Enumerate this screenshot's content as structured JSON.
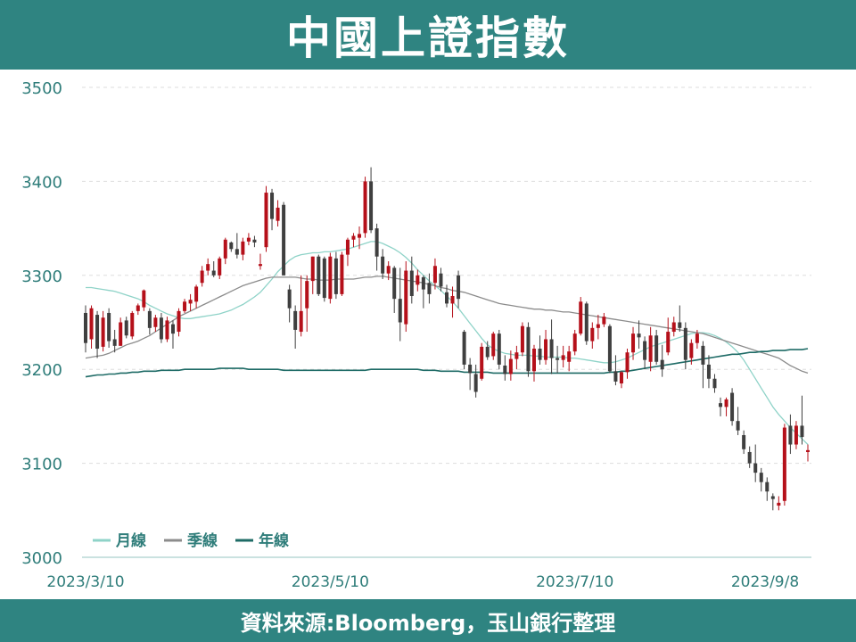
{
  "header": {
    "title": "中國上證指數"
  },
  "footer": {
    "source": "資料來源:Bloomberg，玉山銀行整理"
  },
  "colors": {
    "header_bg": "#2f8481",
    "up": "#b5101a",
    "down": "#3f3f3f",
    "monthly_ma": "#8fd3c8",
    "quarterly_ma": "#8c8c8c",
    "yearly_ma": "#1e6b66",
    "axis_text": "#2f7d7a",
    "grid": "#dddddd"
  },
  "chart_data": {
    "type": "candlestick",
    "title": "中國上證指數",
    "ylim": [
      3000,
      3500
    ],
    "yticks": [
      3000,
      3100,
      3200,
      3300,
      3400,
      3500
    ],
    "xtick_labels": [
      "2023/3/10",
      "2023/5/10",
      "2023/7/10",
      "2023/9/8"
    ],
    "legend": {
      "position": "lower-left",
      "items": [
        "月線",
        "季線",
        "年線"
      ]
    },
    "grid": true,
    "dates": [
      "2023-03-10",
      "2023-03-13",
      "2023-03-14",
      "2023-03-15",
      "2023-03-16",
      "2023-03-17",
      "2023-03-20",
      "2023-03-21",
      "2023-03-22",
      "2023-03-23",
      "2023-03-24",
      "2023-03-27",
      "2023-03-28",
      "2023-03-29",
      "2023-03-30",
      "2023-03-31",
      "2023-04-03",
      "2023-04-04",
      "2023-04-06",
      "2023-04-07",
      "2023-04-10",
      "2023-04-11",
      "2023-04-12",
      "2023-04-13",
      "2023-04-14",
      "2023-04-17",
      "2023-04-18",
      "2023-04-19",
      "2023-04-20",
      "2023-04-21",
      "2023-04-24",
      "2023-04-25",
      "2023-04-26",
      "2023-04-27",
      "2023-04-28",
      "2023-05-04",
      "2023-05-05",
      "2023-05-08",
      "2023-05-09",
      "2023-05-10",
      "2023-05-11",
      "2023-05-12",
      "2023-05-15",
      "2023-05-16",
      "2023-05-17",
      "2023-05-18",
      "2023-05-19",
      "2023-05-22",
      "2023-05-23",
      "2023-05-24",
      "2023-05-25",
      "2023-05-26",
      "2023-05-29",
      "2023-05-30",
      "2023-05-31",
      "2023-06-01",
      "2023-06-02",
      "2023-06-05",
      "2023-06-06",
      "2023-06-07",
      "2023-06-08",
      "2023-06-09",
      "2023-06-12",
      "2023-06-13",
      "2023-06-14",
      "2023-06-15",
      "2023-06-16",
      "2023-06-19",
      "2023-06-20",
      "2023-06-21",
      "2023-06-26",
      "2023-06-27",
      "2023-06-28",
      "2023-06-29",
      "2023-06-30",
      "2023-07-03",
      "2023-07-04",
      "2023-07-05",
      "2023-07-06",
      "2023-07-07",
      "2023-07-10",
      "2023-07-11",
      "2023-07-12",
      "2023-07-13",
      "2023-07-14",
      "2023-07-17",
      "2023-07-18",
      "2023-07-19",
      "2023-07-20",
      "2023-07-21",
      "2023-07-24",
      "2023-07-25",
      "2023-07-26",
      "2023-07-27",
      "2023-07-28",
      "2023-07-31",
      "2023-08-01",
      "2023-08-02",
      "2023-08-03",
      "2023-08-04",
      "2023-08-07",
      "2023-08-08",
      "2023-08-09",
      "2023-08-10",
      "2023-08-11",
      "2023-08-14",
      "2023-08-15",
      "2023-08-16",
      "2023-08-17",
      "2023-08-18",
      "2023-08-21",
      "2023-08-22",
      "2023-08-23",
      "2023-08-24",
      "2023-08-25",
      "2023-08-28",
      "2023-08-29",
      "2023-08-30",
      "2023-08-31",
      "2023-09-01",
      "2023-09-04",
      "2023-09-05",
      "2023-09-06",
      "2023-09-07",
      "2023-09-08"
    ],
    "ohlc": [
      [
        3260,
        3268,
        3218,
        3228
      ],
      [
        3232,
        3268,
        3222,
        3265
      ],
      [
        3258,
        3262,
        3212,
        3222
      ],
      [
        3224,
        3262,
        3219,
        3255
      ],
      [
        3260,
        3265,
        3223,
        3230
      ],
      [
        3232,
        3242,
        3218,
        3225
      ],
      [
        3225,
        3255,
        3225,
        3250
      ],
      [
        3252,
        3256,
        3233,
        3236
      ],
      [
        3235,
        3262,
        3232,
        3260
      ],
      [
        3262,
        3270,
        3258,
        3268
      ],
      [
        3266,
        3285,
        3262,
        3284
      ],
      [
        3262,
        3265,
        3237,
        3244
      ],
      [
        3245,
        3258,
        3240,
        3255
      ],
      [
        3255,
        3260,
        3228,
        3232
      ],
      [
        3232,
        3256,
        3229,
        3252
      ],
      [
        3248,
        3252,
        3222,
        3238
      ],
      [
        3240,
        3265,
        3235,
        3262
      ],
      [
        3262,
        3275,
        3260,
        3272
      ],
      [
        3270,
        3280,
        3262,
        3274
      ],
      [
        3272,
        3290,
        3265,
        3288
      ],
      [
        3292,
        3310,
        3288,
        3305
      ],
      [
        3305,
        3318,
        3300,
        3312
      ],
      [
        3305,
        3315,
        3298,
        3300
      ],
      [
        3300,
        3320,
        3296,
        3318
      ],
      [
        3318,
        3340,
        3312,
        3338
      ],
      [
        3335,
        3336,
        3325,
        3328
      ],
      [
        3328,
        3345,
        3318,
        3322
      ],
      [
        3322,
        3340,
        3316,
        3336
      ],
      [
        3336,
        3345,
        3332,
        3340
      ],
      [
        3338,
        3342,
        3330,
        3335
      ],
      [
        3310,
        3323,
        3306,
        3312
      ],
      [
        3330,
        3395,
        3325,
        3388
      ],
      [
        3388,
        3392,
        3348,
        3360
      ],
      [
        3358,
        3380,
        3352,
        3372
      ],
      [
        3375,
        3378,
        3300,
        3300
      ],
      [
        3285,
        3290,
        3250,
        3265
      ],
      [
        3262,
        3268,
        3222,
        3242
      ],
      [
        3240,
        3300,
        3235,
        3262
      ],
      [
        3265,
        3300,
        3240,
        3294
      ],
      [
        3294,
        3320,
        3280,
        3320
      ],
      [
        3320,
        3322,
        3278,
        3280
      ],
      [
        3318,
        3320,
        3272,
        3276
      ],
      [
        3275,
        3324,
        3270,
        3320
      ],
      [
        3318,
        3325,
        3275,
        3280
      ],
      [
        3280,
        3325,
        3278,
        3322
      ],
      [
        3322,
        3340,
        3310,
        3338
      ],
      [
        3338,
        3345,
        3330,
        3342
      ],
      [
        3340,
        3352,
        3328,
        3344
      ],
      [
        3345,
        3405,
        3340,
        3400
      ],
      [
        3400,
        3415,
        3345,
        3348
      ],
      [
        3350,
        3355,
        3305,
        3320
      ],
      [
        3320,
        3328,
        3296,
        3302
      ],
      [
        3302,
        3315,
        3295,
        3310
      ],
      [
        3308,
        3310,
        3260,
        3275
      ],
      [
        3275,
        3308,
        3230,
        3250
      ],
      [
        3248,
        3315,
        3240,
        3305
      ],
      [
        3305,
        3320,
        3270,
        3278
      ],
      [
        3290,
        3306,
        3283,
        3300
      ],
      [
        3298,
        3300,
        3265,
        3285
      ],
      [
        3292,
        3302,
        3270,
        3280
      ],
      [
        3292,
        3318,
        3285,
        3310
      ],
      [
        3302,
        3308,
        3283,
        3288
      ],
      [
        3282,
        3290,
        3266,
        3270
      ],
      [
        3270,
        3288,
        3255,
        3278
      ],
      [
        3300,
        3305,
        3265,
        3275
      ],
      [
        3240,
        3242,
        3200,
        3205
      ],
      [
        3205,
        3212,
        3178,
        3196
      ],
      [
        3195,
        3205,
        3170,
        3176
      ],
      [
        3190,
        3228,
        3188,
        3224
      ],
      [
        3224,
        3230,
        3210,
        3213
      ],
      [
        3214,
        3240,
        3210,
        3238
      ],
      [
        3238,
        3242,
        3200,
        3205
      ],
      [
        3204,
        3215,
        3188,
        3195
      ],
      [
        3195,
        3220,
        3188,
        3211
      ],
      [
        3211,
        3225,
        3200,
        3218
      ],
      [
        3218,
        3250,
        3214,
        3246
      ],
      [
        3245,
        3250,
        3192,
        3198
      ],
      [
        3198,
        3226,
        3187,
        3222
      ],
      [
        3222,
        3236,
        3205,
        3210
      ],
      [
        3210,
        3242,
        3205,
        3232
      ],
      [
        3232,
        3253,
        3195,
        3212
      ],
      [
        3212,
        3225,
        3196,
        3210
      ],
      [
        3210,
        3225,
        3202,
        3215
      ],
      [
        3208,
        3225,
        3198,
        3219
      ],
      [
        3219,
        3242,
        3215,
        3238
      ],
      [
        3238,
        3277,
        3236,
        3272
      ],
      [
        3270,
        3272,
        3226,
        3230
      ],
      [
        3230,
        3250,
        3222,
        3244
      ],
      [
        3244,
        3258,
        3232,
        3248
      ],
      [
        3248,
        3260,
        3245,
        3256
      ],
      [
        3246,
        3248,
        3196,
        3198
      ],
      [
        3198,
        3215,
        3183,
        3187
      ],
      [
        3185,
        3198,
        3180,
        3197
      ],
      [
        3197,
        3222,
        3190,
        3218
      ],
      [
        3218,
        3245,
        3210,
        3238
      ],
      [
        3238,
        3252,
        3222,
        3234
      ],
      [
        3230,
        3235,
        3200,
        3210
      ],
      [
        3208,
        3245,
        3198,
        3236
      ],
      [
        3236,
        3242,
        3205,
        3208
      ],
      [
        3210,
        3226,
        3192,
        3200
      ],
      [
        3218,
        3255,
        3215,
        3240
      ],
      [
        3240,
        3256,
        3235,
        3250
      ],
      [
        3250,
        3268,
        3240,
        3244
      ],
      [
        3244,
        3250,
        3200,
        3210
      ],
      [
        3212,
        3232,
        3205,
        3228
      ],
      [
        3228,
        3242,
        3222,
        3238
      ],
      [
        3225,
        3230,
        3180,
        3205
      ],
      [
        3205,
        3215,
        3180,
        3190
      ],
      [
        3190,
        3195,
        3175,
        3180
      ],
      [
        3164,
        3170,
        3150,
        3160
      ],
      [
        3160,
        3170,
        3150,
        3168
      ],
      [
        3175,
        3180,
        3140,
        3145
      ],
      [
        3145,
        3160,
        3130,
        3135
      ],
      [
        3130,
        3135,
        3110,
        3115
      ],
      [
        3112,
        3118,
        3095,
        3100
      ],
      [
        3100,
        3120,
        3080,
        3090
      ],
      [
        3090,
        3095,
        3070,
        3080
      ],
      [
        3080,
        3085,
        3060,
        3070
      ],
      [
        3065,
        3068,
        3050,
        3062
      ],
      [
        3055,
        3065,
        3050,
        3058
      ],
      [
        3060,
        3142,
        3055,
        3138
      ],
      [
        3140,
        3152,
        3110,
        3120
      ],
      [
        3120,
        3145,
        3115,
        3140
      ],
      [
        3140,
        3172,
        3120,
        3128
      ],
      [
        3112,
        3120,
        3102,
        3114
      ]
    ],
    "series": [
      {
        "name": "月線",
        "values": [
          3287,
          3287,
          3286,
          3285,
          3284,
          3283,
          3281,
          3279,
          3277,
          3275,
          3272,
          3268,
          3265,
          3262,
          3259,
          3257,
          3255,
          3254,
          3254,
          3255,
          3256,
          3257,
          3258,
          3259,
          3261,
          3263,
          3266,
          3269,
          3273,
          3277,
          3282,
          3289,
          3296,
          3304,
          3310,
          3316,
          3320,
          3322,
          3323,
          3324,
          3324,
          3325,
          3325,
          3326,
          3327,
          3328,
          3330,
          3332,
          3334,
          3336,
          3336,
          3334,
          3331,
          3328,
          3324,
          3319,
          3313,
          3306,
          3300,
          3294,
          3289,
          3284,
          3278,
          3272,
          3265,
          3257,
          3249,
          3241,
          3233,
          3226,
          3222,
          3219,
          3217,
          3216,
          3215,
          3215,
          3215,
          3214,
          3214,
          3213,
          3213,
          3213,
          3213,
          3212,
          3212,
          3211,
          3210,
          3209,
          3208,
          3207,
          3207,
          3208,
          3210,
          3212,
          3215,
          3218,
          3221,
          3224,
          3226,
          3228,
          3230,
          3232,
          3234,
          3236,
          3238,
          3239,
          3239,
          3238,
          3236,
          3233,
          3229,
          3224,
          3218,
          3210,
          3200,
          3190,
          3180,
          3170,
          3160,
          3152,
          3145,
          3138,
          3132,
          3126,
          3120
        ]
      },
      {
        "name": "季線",
        "values": [
          3212,
          3213,
          3214,
          3215,
          3217,
          3220,
          3223,
          3226,
          3228,
          3230,
          3233,
          3236,
          3240,
          3244,
          3248,
          3252,
          3256,
          3259,
          3262,
          3265,
          3268,
          3271,
          3274,
          3277,
          3280,
          3283,
          3286,
          3289,
          3291,
          3293,
          3295,
          3297,
          3298,
          3298,
          3298,
          3298,
          3298,
          3297,
          3296,
          3296,
          3295,
          3295,
          3295,
          3296,
          3296,
          3296,
          3296,
          3297,
          3298,
          3298,
          3299,
          3299,
          3298,
          3297,
          3296,
          3295,
          3294,
          3293,
          3292,
          3290,
          3289,
          3287,
          3286,
          3284,
          3283,
          3282,
          3280,
          3278,
          3276,
          3274,
          3272,
          3270,
          3269,
          3268,
          3267,
          3266,
          3265,
          3264,
          3264,
          3263,
          3263,
          3262,
          3261,
          3261,
          3260,
          3259,
          3258,
          3257,
          3256,
          3255,
          3254,
          3253,
          3252,
          3251,
          3250,
          3249,
          3248,
          3247,
          3246,
          3245,
          3244,
          3243,
          3242,
          3241,
          3240,
          3239,
          3238,
          3236,
          3234,
          3232,
          3230,
          3228,
          3226,
          3224,
          3222,
          3220,
          3218,
          3216,
          3214,
          3212,
          3208,
          3204,
          3201,
          3198,
          3196
        ]
      },
      {
        "name": "年線",
        "values": [
          3192,
          3193,
          3194,
          3194,
          3195,
          3195,
          3196,
          3196,
          3197,
          3197,
          3198,
          3198,
          3198,
          3199,
          3199,
          3199,
          3199,
          3200,
          3200,
          3200,
          3200,
          3200,
          3200,
          3201,
          3201,
          3201,
          3201,
          3201,
          3200,
          3200,
          3200,
          3200,
          3200,
          3200,
          3199,
          3199,
          3199,
          3199,
          3199,
          3199,
          3199,
          3199,
          3199,
          3199,
          3199,
          3199,
          3199,
          3199,
          3199,
          3200,
          3200,
          3200,
          3200,
          3200,
          3200,
          3200,
          3200,
          3200,
          3199,
          3199,
          3199,
          3198,
          3198,
          3198,
          3198,
          3197,
          3197,
          3197,
          3197,
          3197,
          3196,
          3196,
          3196,
          3196,
          3196,
          3196,
          3196,
          3196,
          3196,
          3196,
          3196,
          3196,
          3196,
          3196,
          3196,
          3196,
          3196,
          3196,
          3196,
          3196,
          3197,
          3197,
          3198,
          3198,
          3199,
          3200,
          3201,
          3202,
          3203,
          3204,
          3205,
          3206,
          3207,
          3208,
          3209,
          3210,
          3211,
          3212,
          3213,
          3214,
          3215,
          3216,
          3216,
          3217,
          3218,
          3218,
          3219,
          3219,
          3220,
          3220,
          3220,
          3221,
          3221,
          3221,
          3222
        ]
      }
    ]
  }
}
